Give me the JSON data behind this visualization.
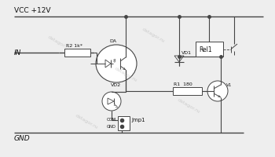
{
  "bg_color": "#eeeeee",
  "line_color": "#444444",
  "text_color": "#111111",
  "watermark": "datagor.ru",
  "vcc_label": "VCC +12V",
  "in_label": "IN",
  "gnd_label": "GND",
  "r2_label": "R2 1k*",
  "da_label": "DA",
  "vd2_label": "VD2",
  "vd1_label": "VD1",
  "rel1_label": "Rel1",
  "r1_label": "R1  180",
  "jmp1_label": "Jmp1",
  "com_label": "COM",
  "gnd2_label": "GND",
  "v1_label": "V1"
}
